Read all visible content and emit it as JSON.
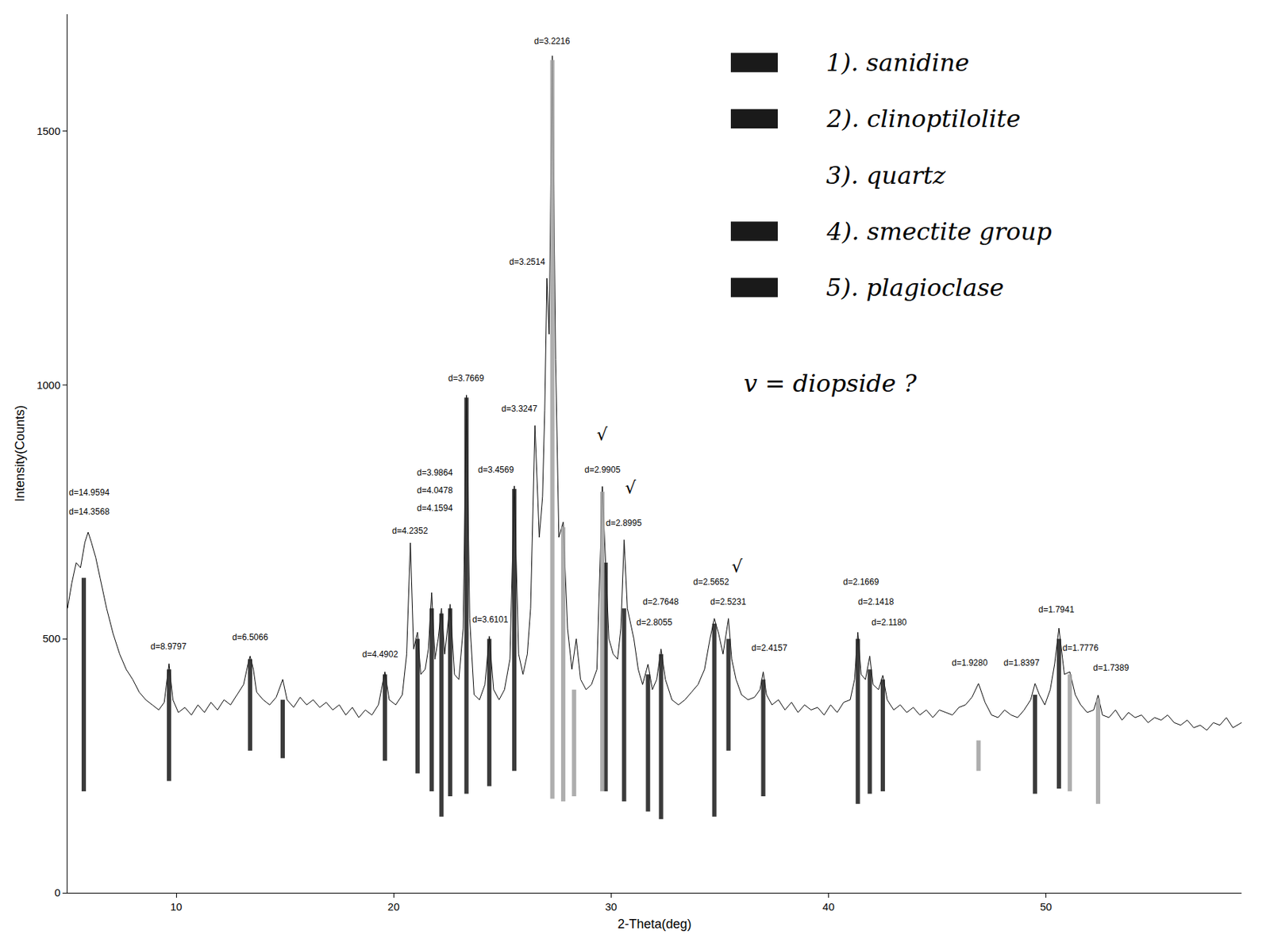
{
  "chart_data": {
    "type": "line",
    "color": "#000000",
    "xlabel": "2-Theta(deg)",
    "ylabel": "Intensity(Counts)",
    "xlim": [
      5,
      59
    ],
    "ylim": [
      0,
      1730
    ],
    "xticks": [
      10,
      20,
      30,
      40,
      50
    ],
    "yticks": [
      0,
      500,
      1000,
      1500
    ],
    "grid": false,
    "x": [
      5.0,
      5.2,
      5.4,
      5.6,
      5.8,
      5.95,
      6.1,
      6.3,
      6.5,
      6.8,
      7.1,
      7.4,
      7.7,
      8.0,
      8.3,
      8.6,
      8.9,
      9.2,
      9.45,
      9.67,
      9.85,
      10.1,
      10.4,
      10.7,
      11.0,
      11.3,
      11.6,
      11.9,
      12.2,
      12.5,
      12.8,
      13.1,
      13.3,
      13.4,
      13.55,
      13.7,
      14.0,
      14.3,
      14.6,
      14.9,
      15.1,
      15.4,
      15.7,
      16.0,
      16.3,
      16.6,
      16.9,
      17.2,
      17.5,
      17.8,
      18.1,
      18.4,
      18.7,
      19.0,
      19.3,
      19.6,
      19.8,
      20.1,
      20.4,
      20.6,
      20.77,
      20.92,
      21.1,
      21.25,
      21.45,
      21.6,
      21.75,
      21.9,
      22.05,
      22.2,
      22.35,
      22.6,
      22.8,
      23.0,
      23.2,
      23.35,
      23.5,
      23.7,
      23.95,
      24.2,
      24.4,
      24.6,
      24.85,
      25.1,
      25.35,
      25.55,
      25.75,
      25.95,
      26.15,
      26.3,
      26.5,
      26.7,
      26.85,
      26.95,
      27.05,
      27.15,
      27.3,
      27.45,
      27.6,
      27.8,
      28.0,
      28.2,
      28.4,
      28.6,
      28.85,
      29.1,
      29.35,
      29.6,
      29.75,
      29.9,
      30.1,
      30.3,
      30.45,
      30.6,
      30.75,
      30.9,
      31.05,
      31.25,
      31.45,
      31.7,
      31.9,
      32.1,
      32.3,
      32.5,
      32.8,
      33.1,
      33.4,
      33.7,
      34.0,
      34.3,
      34.55,
      34.75,
      34.95,
      35.15,
      35.4,
      35.55,
      35.75,
      36.0,
      36.3,
      36.6,
      36.85,
      37.0,
      37.15,
      37.4,
      37.7,
      38.0,
      38.3,
      38.6,
      38.9,
      39.2,
      39.5,
      39.8,
      40.1,
      40.4,
      40.7,
      41.0,
      41.2,
      41.35,
      41.5,
      41.7,
      41.9,
      42.05,
      42.3,
      42.5,
      42.7,
      43.0,
      43.3,
      43.6,
      43.9,
      44.2,
      44.5,
      44.8,
      45.1,
      45.4,
      45.7,
      46.0,
      46.3,
      46.6,
      46.9,
      47.2,
      47.5,
      47.8,
      48.1,
      48.4,
      48.7,
      49.0,
      49.3,
      49.5,
      49.7,
      49.95,
      50.2,
      50.4,
      50.6,
      50.85,
      51.1,
      51.35,
      51.6,
      51.9,
      52.2,
      52.4,
      52.6,
      52.9,
      53.2,
      53.5,
      53.8,
      54.1,
      54.4,
      54.7,
      55.0,
      55.3,
      55.6,
      55.9,
      56.2,
      56.5,
      56.8,
      57.1,
      57.4,
      57.7,
      58.0,
      58.3,
      58.6,
      59.0
    ],
    "values": [
      560,
      610,
      650,
      640,
      690,
      710,
      690,
      660,
      620,
      560,
      510,
      470,
      440,
      420,
      395,
      380,
      370,
      360,
      375,
      451,
      380,
      355,
      365,
      350,
      370,
      355,
      375,
      360,
      380,
      370,
      390,
      410,
      450,
      466,
      440,
      395,
      380,
      370,
      385,
      420,
      380,
      365,
      385,
      370,
      380,
      365,
      375,
      360,
      370,
      350,
      365,
      345,
      360,
      350,
      370,
      435,
      380,
      370,
      390,
      470,
      689,
      480,
      513,
      430,
      440,
      480,
      591,
      460,
      500,
      560,
      470,
      568,
      430,
      420,
      520,
      980,
      540,
      390,
      380,
      410,
      505,
      400,
      380,
      400,
      460,
      801,
      470,
      430,
      470,
      560,
      920,
      700,
      780,
      950,
      1210,
      1100,
      1648,
      1050,
      700,
      730,
      520,
      440,
      500,
      420,
      400,
      410,
      440,
      800,
      650,
      500,
      470,
      460,
      520,
      695,
      560,
      530,
      500,
      440,
      410,
      450,
      400,
      420,
      480,
      420,
      380,
      370,
      380,
      395,
      410,
      440,
      500,
      540,
      510,
      470,
      540,
      460,
      420,
      390,
      380,
      385,
      400,
      435,
      390,
      370,
      380,
      360,
      375,
      355,
      370,
      360,
      365,
      350,
      370,
      355,
      375,
      380,
      420,
      513,
      430,
      420,
      466,
      410,
      400,
      428,
      380,
      360,
      370,
      355,
      365,
      350,
      360,
      345,
      360,
      355,
      350,
      365,
      370,
      385,
      412,
      375,
      350,
      345,
      360,
      350,
      345,
      360,
      380,
      412,
      390,
      370,
      400,
      450,
      521,
      430,
      435,
      390,
      370,
      355,
      360,
      389,
      350,
      345,
      360,
      340,
      355,
      345,
      350,
      335,
      345,
      340,
      350,
      335,
      330,
      340,
      325,
      330,
      320,
      335,
      330,
      345,
      325,
      335
    ],
    "peak_labels": [
      {
        "text": "d=14.9594",
        "x": 6.0,
        "y": 775
      },
      {
        "text": "d=14.3568",
        "x": 6.0,
        "y": 738
      },
      {
        "text": "d=8.9797",
        "x": 9.67,
        "y": 472
      },
      {
        "text": "d=6.5066",
        "x": 13.4,
        "y": 490
      },
      {
        "text": "d=4.4902",
        "x": 19.4,
        "y": 457
      },
      {
        "text": "d=4.2352",
        "x": 20.77,
        "y": 700
      },
      {
        "text": "d=4.1594",
        "x": 21.9,
        "y": 745
      },
      {
        "text": "d=4.0478",
        "x": 21.9,
        "y": 780
      },
      {
        "text": "d=3.9864",
        "x": 21.9,
        "y": 815
      },
      {
        "text": "d=3.7669",
        "x": 23.35,
        "y": 1000
      },
      {
        "text": "d=3.6101",
        "x": 24.45,
        "y": 525
      },
      {
        "text": "d=3.4569",
        "x": 24.7,
        "y": 820
      },
      {
        "text": "d=3.3247",
        "x": 25.8,
        "y": 940
      },
      {
        "text": "d=3.2514",
        "x": 26.15,
        "y": 1230
      },
      {
        "text": "d=3.2216",
        "x": 27.3,
        "y": 1665
      },
      {
        "text": "d=2.9905",
        "x": 29.6,
        "y": 820
      },
      {
        "text": "d=2.8995",
        "x": 30.6,
        "y": 715
      },
      {
        "text": "d=2.7648",
        "x": 32.3,
        "y": 560
      },
      {
        "text": "d=2.8055",
        "x": 32.0,
        "y": 520
      },
      {
        "text": "d=2.5652",
        "x": 34.6,
        "y": 600
      },
      {
        "text": "d=2.5231",
        "x": 35.4,
        "y": 560
      },
      {
        "text": "d=2.4157",
        "x": 37.3,
        "y": 470
      },
      {
        "text": "d=2.1669",
        "x": 41.5,
        "y": 600
      },
      {
        "text": "d=2.1418",
        "x": 42.2,
        "y": 560
      },
      {
        "text": "d=2.1180",
        "x": 42.8,
        "y": 520
      },
      {
        "text": "d=1.9280",
        "x": 46.5,
        "y": 440
      },
      {
        "text": "d=1.8397",
        "x": 48.9,
        "y": 440
      },
      {
        "text": "d=1.7941",
        "x": 50.5,
        "y": 545
      },
      {
        "text": "d=1.7776",
        "x": 51.6,
        "y": 470
      },
      {
        "text": "d=1.7389",
        "x": 53.0,
        "y": 430
      }
    ],
    "checkmarks": [
      {
        "text": "√",
        "x": 29.6,
        "y": 880
      },
      {
        "text": "√",
        "x": 30.9,
        "y": 775
      },
      {
        "text": "√",
        "x": 35.8,
        "y": 620
      }
    ],
    "marks": [
      {
        "color": "#1a1a1a",
        "x": [
          5.75,
          9.67,
          13.4,
          14.9,
          19.6,
          21.1,
          21.75,
          22.2,
          22.6,
          23.35,
          24.4,
          25.55,
          29.75,
          30.6,
          31.7,
          32.3,
          34.75,
          35.4,
          37.0,
          41.35,
          41.9,
          42.5,
          49.5,
          50.6
        ],
        "top": [
          620,
          440,
          460,
          380,
          430,
          500,
          560,
          550,
          560,
          975,
          500,
          795,
          650,
          560,
          430,
          470,
          530,
          500,
          420,
          500,
          440,
          420,
          390,
          500
        ],
        "bottom": [
          200,
          220,
          280,
          265,
          260,
          235,
          200,
          150,
          190,
          195,
          210,
          240,
          200,
          180,
          160,
          145,
          150,
          280,
          190,
          175,
          195,
          200,
          195,
          205
        ]
      },
      {
        "color": "#a0a0a0",
        "x": [
          27.3,
          27.8,
          28.3,
          29.6,
          46.9,
          51.1,
          52.4
        ],
        "top": [
          1640,
          720,
          400,
          790,
          300,
          430,
          380
        ],
        "bottom": [
          185,
          180,
          190,
          200,
          240,
          200,
          175
        ]
      }
    ],
    "legend_notes": [
      {
        "text": "1). sanidine",
        "color": "#1a1a1a"
      },
      {
        "text": "2). clinoptilolite",
        "color": "#1a1a1a"
      },
      {
        "text": "3). quartz"
      },
      {
        "text": "4). smectite group",
        "color": "#1a1a1a"
      },
      {
        "text": "5). plagioclase",
        "color": "#1a1a1a"
      }
    ],
    "note": "v = diopside ?"
  }
}
